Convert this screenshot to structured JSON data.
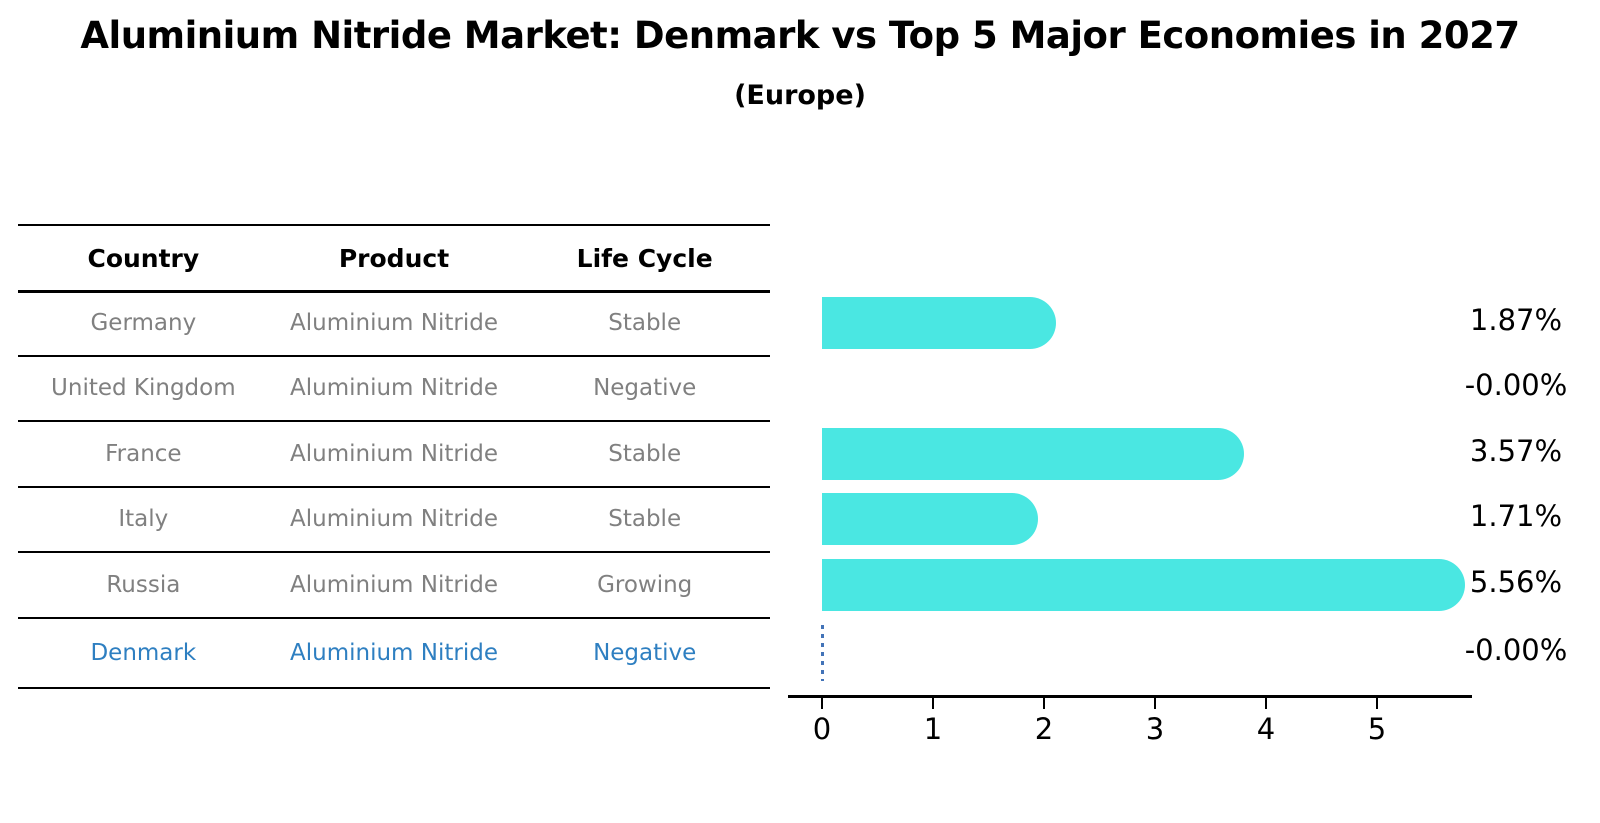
{
  "title": "Aluminium Nitride Market: Denmark vs Top 5 Major Economies in 2027",
  "subtitle": "(Europe)",
  "table": {
    "columns": [
      "Country",
      "Product",
      "Life Cycle"
    ],
    "rows": [
      {
        "country": "Germany",
        "product": "Aluminium Nitride",
        "life_cycle": "Stable",
        "value": 1.87,
        "value_label": "1.87%",
        "highlight": false
      },
      {
        "country": "United Kingdom",
        "product": "Aluminium Nitride",
        "life_cycle": "Negative",
        "value": -0.0,
        "value_label": "-0.00%",
        "highlight": false
      },
      {
        "country": "France",
        "product": "Aluminium Nitride",
        "life_cycle": "Stable",
        "value": 3.57,
        "value_label": "3.57%",
        "highlight": false
      },
      {
        "country": "Italy",
        "product": "Aluminium Nitride",
        "life_cycle": "Stable",
        "value": 1.71,
        "value_label": "1.71%",
        "highlight": false
      },
      {
        "country": "Russia",
        "product": "Aluminium Nitride",
        "life_cycle": "Growing",
        "value": 5.56,
        "value_label": "5.56%",
        "highlight": false
      },
      {
        "country": "Denmark",
        "product": "Aluminium Nitride",
        "life_cycle": "Negative",
        "value": -0.0,
        "value_label": "-0.00%",
        "highlight": true
      }
    ]
  },
  "chart_data": {
    "type": "bar",
    "orientation": "horizontal",
    "title": "Aluminium Nitride Market: Denmark vs Top 5 Major Economies in 2027 (Europe)",
    "categories": [
      "Germany",
      "United Kingdom",
      "France",
      "Italy",
      "Russia",
      "Denmark"
    ],
    "values": [
      1.87,
      -0.0,
      3.57,
      1.71,
      5.56,
      -0.0
    ],
    "value_labels": [
      "1.87%",
      "-0.00%",
      "3.57%",
      "1.71%",
      "5.56%",
      "-0.00%"
    ],
    "unit": "percent",
    "xticks": [
      0,
      1,
      2,
      3,
      4,
      5
    ],
    "xlim": [
      -0.3,
      5.9
    ],
    "grid": false,
    "legend": false,
    "zero_marker_category": "Denmark"
  },
  "colors": {
    "bar": "#4AE7E2",
    "highlight_text": "#2E7FC1",
    "row_text": "#808080",
    "zero_marker": "#4273B8",
    "line": "#000000"
  }
}
